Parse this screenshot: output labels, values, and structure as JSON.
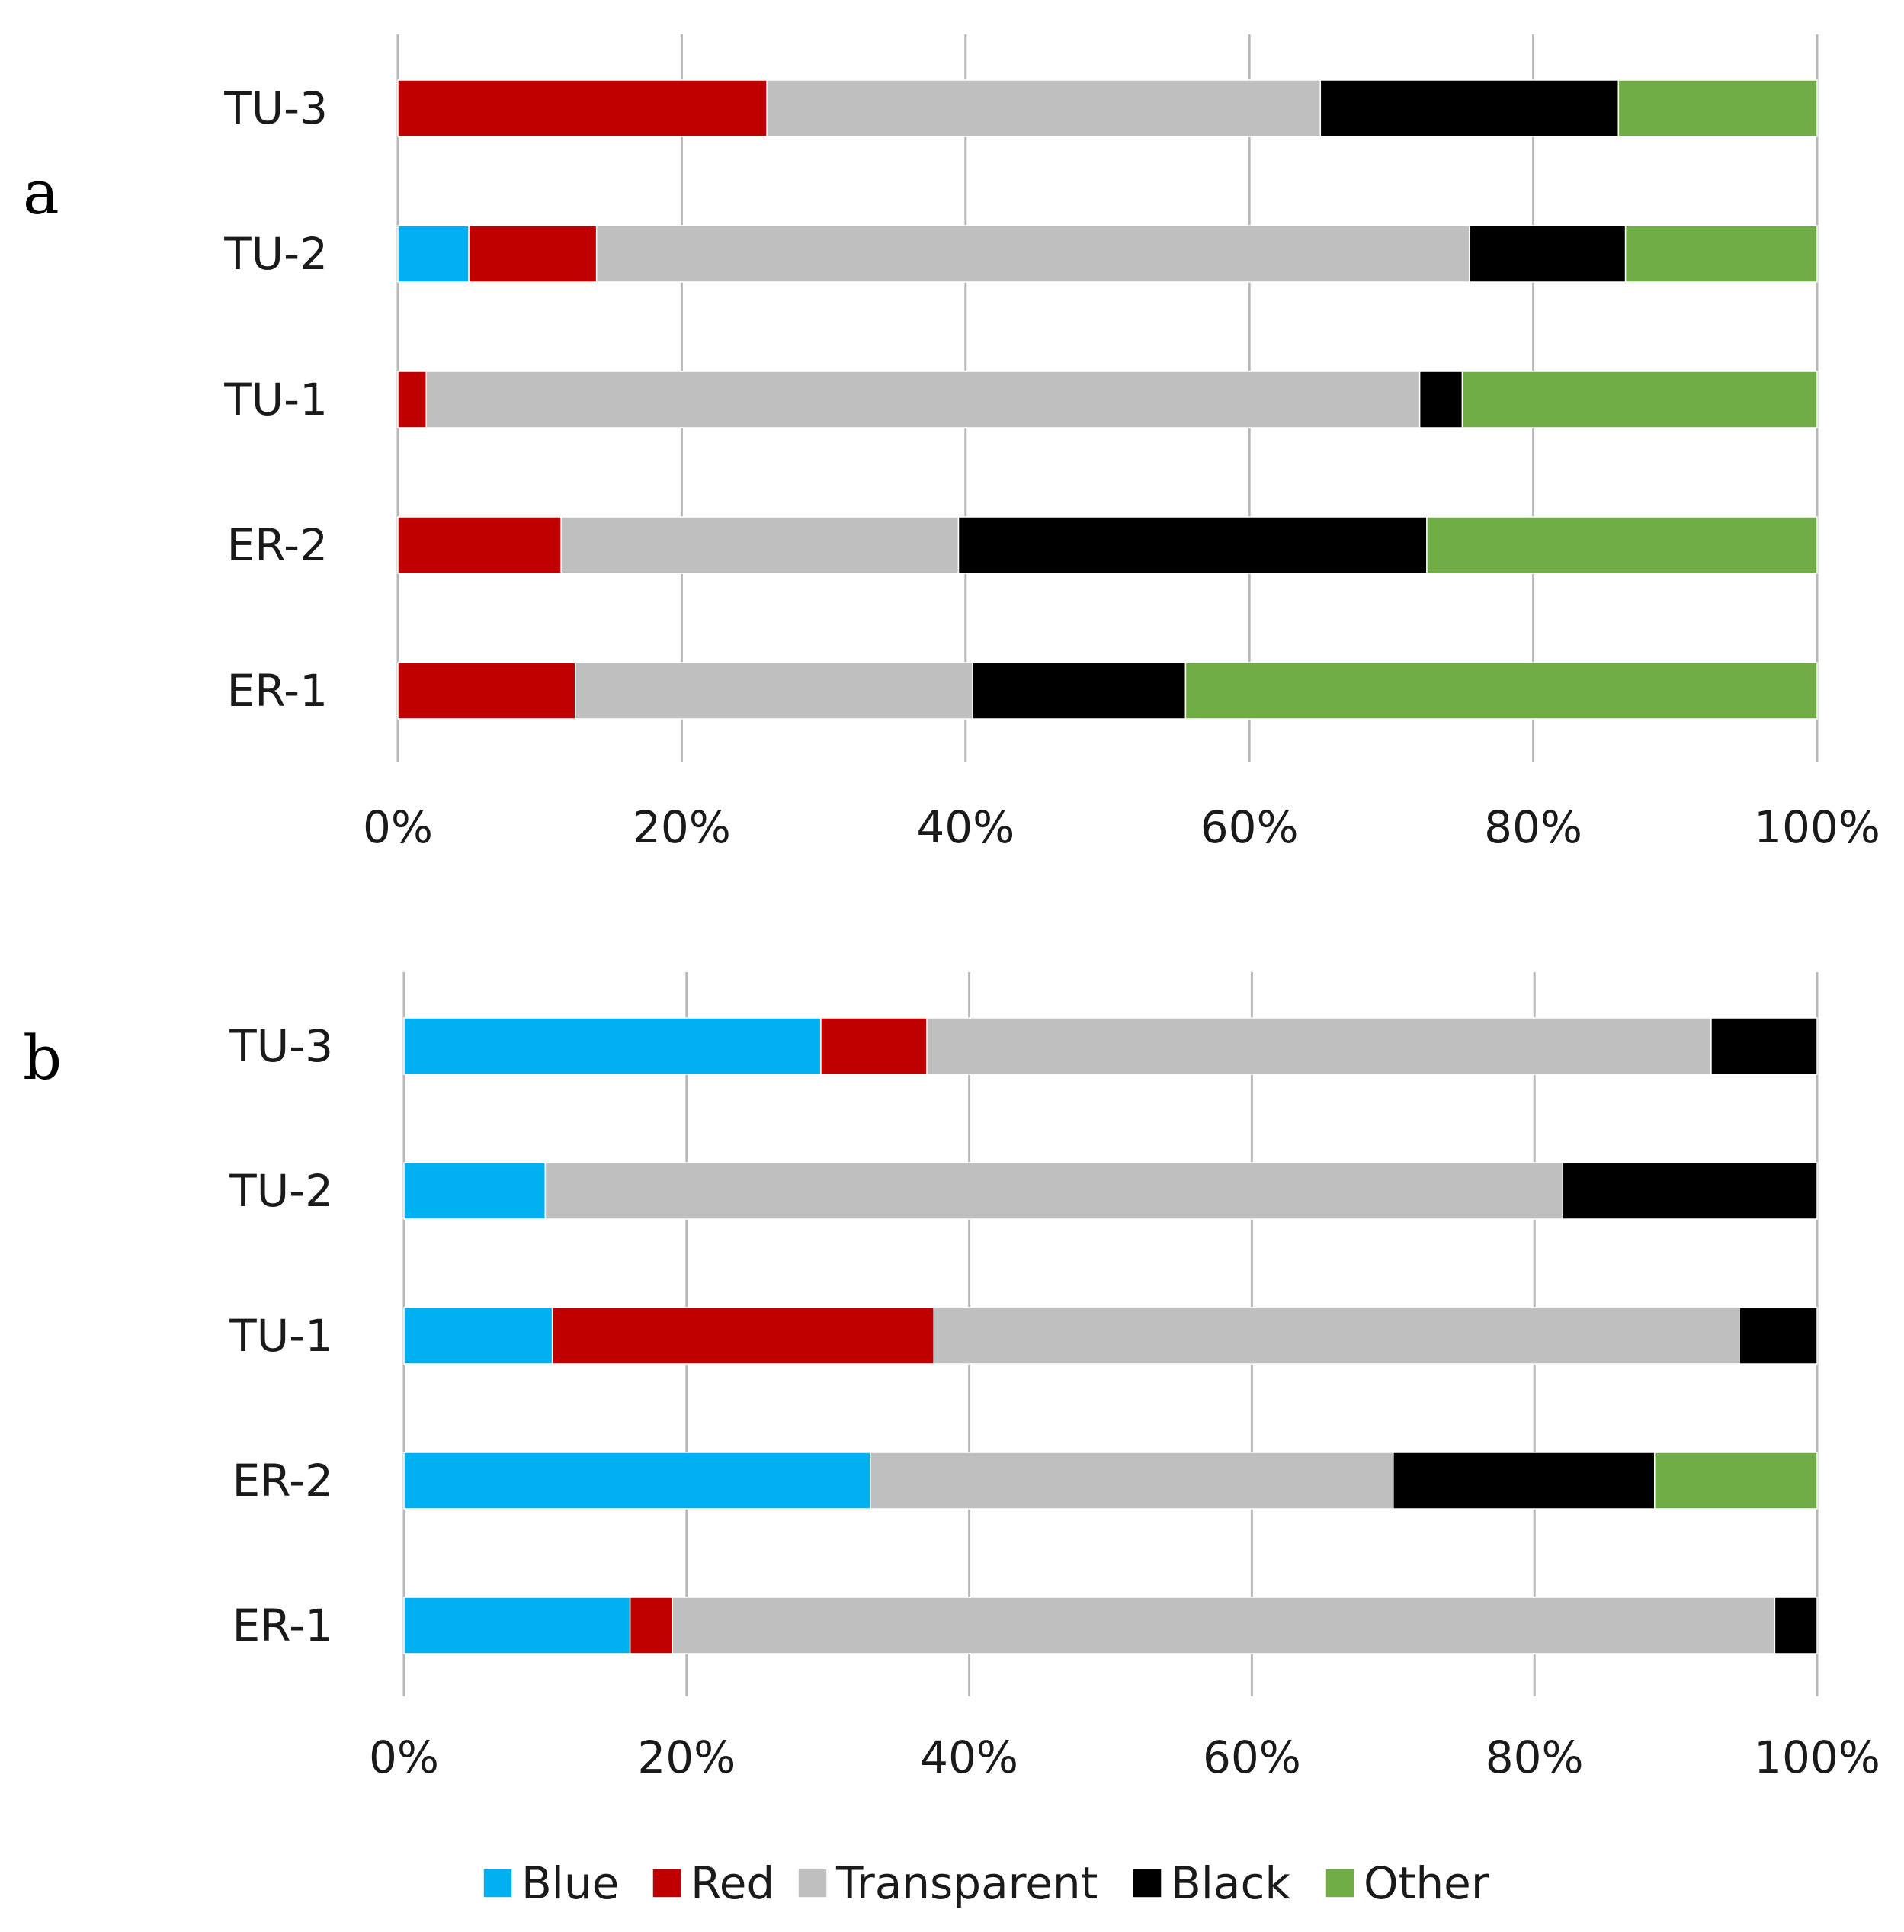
{
  "chart_data": [
    {
      "panel": "a",
      "type": "bar",
      "orientation": "horizontal",
      "stacked": "percent",
      "categories": [
        "TU-3",
        "TU-2",
        "TU-1",
        "ER-2",
        "ER-1"
      ],
      "series": [
        {
          "name": "Blue",
          "values": [
            0,
            5,
            0,
            0,
            0
          ]
        },
        {
          "name": "Red",
          "values": [
            26,
            9,
            2,
            11.5,
            12.5
          ]
        },
        {
          "name": "Transparent",
          "values": [
            39,
            61.5,
            70,
            28,
            28
          ]
        },
        {
          "name": "Black",
          "values": [
            21,
            11,
            3,
            33,
            15
          ]
        },
        {
          "name": "Other",
          "values": [
            14,
            13.5,
            25,
            27.5,
            44.5
          ]
        }
      ],
      "xticks": [
        "0%",
        "20%",
        "40%",
        "60%",
        "80%",
        "100%"
      ],
      "xlim": [
        0,
        100
      ],
      "grid": true
    },
    {
      "panel": "b",
      "type": "bar",
      "orientation": "horizontal",
      "stacked": "percent",
      "categories": [
        "TU-3",
        "TU-2",
        "TU-1",
        "ER-2",
        "ER-1"
      ],
      "series": [
        {
          "name": "Blue",
          "values": [
            29.5,
            10,
            10.5,
            33,
            16
          ]
        },
        {
          "name": "Red",
          "values": [
            7.5,
            0,
            27,
            0,
            3
          ]
        },
        {
          "name": "Transparent",
          "values": [
            55.5,
            72,
            57,
            37,
            78
          ]
        },
        {
          "name": "Black",
          "values": [
            7.5,
            18,
            5.5,
            18.5,
            3
          ]
        },
        {
          "name": "Other",
          "values": [
            0,
            0,
            0,
            11.5,
            0
          ]
        }
      ],
      "xticks": [
        "0%",
        "20%",
        "40%",
        "60%",
        "80%",
        "100%"
      ],
      "xlim": [
        0,
        100
      ],
      "grid": true
    }
  ],
  "legend": {
    "position": "bottom",
    "items": [
      {
        "name": "Blue",
        "color": "#00b0f0"
      },
      {
        "name": "Red",
        "color": "#c00000"
      },
      {
        "name": "Transparent",
        "color": "#bfbfbf"
      },
      {
        "name": "Black",
        "color": "#000000"
      },
      {
        "name": "Other",
        "color": "#70ad47"
      }
    ]
  }
}
